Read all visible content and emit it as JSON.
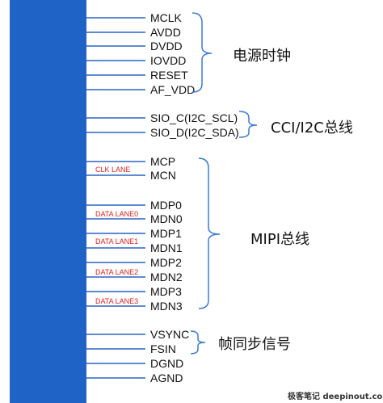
{
  "pins": [
    {
      "id": "mclk",
      "label": "MCLK"
    },
    {
      "id": "avdd",
      "label": "AVDD"
    },
    {
      "id": "dvdd",
      "label": "DVDD"
    },
    {
      "id": "iovdd",
      "label": "IOVDD"
    },
    {
      "id": "reset",
      "label": "RESET"
    },
    {
      "id": "af-vdd",
      "label": "AF_VDD"
    },
    {
      "id": "sio-c",
      "label": "SIO_C(I2C_SCL)"
    },
    {
      "id": "sio-d",
      "label": "SIO_D(I2C_SDA)"
    },
    {
      "id": "mcp",
      "label": "MCP"
    },
    {
      "id": "mcn",
      "label": "MCN"
    },
    {
      "id": "mdp0",
      "label": "MDP0"
    },
    {
      "id": "mdn0",
      "label": "MDN0"
    },
    {
      "id": "mdp1",
      "label": "MDP1"
    },
    {
      "id": "mdn1",
      "label": "MDN1"
    },
    {
      "id": "mdp2",
      "label": "MDP2"
    },
    {
      "id": "mdn2",
      "label": "MDN2"
    },
    {
      "id": "mdp3",
      "label": "MDP3"
    },
    {
      "id": "mdn3",
      "label": "MDN3"
    },
    {
      "id": "vsync",
      "label": "VSYNC"
    },
    {
      "id": "fsin",
      "label": "FSIN"
    },
    {
      "id": "dgnd",
      "label": "DGND"
    },
    {
      "id": "agnd",
      "label": "AGND"
    }
  ],
  "lanes": [
    {
      "id": "clk-lane",
      "label": "CLK LANE"
    },
    {
      "id": "data-lane0",
      "label": "DATA LANE0"
    },
    {
      "id": "data-lane1",
      "label": "DATA LANE1"
    },
    {
      "id": "data-lane2",
      "label": "DATA LANE2"
    },
    {
      "id": "data-lane3",
      "label": "DATA LANE3"
    }
  ],
  "groups": [
    {
      "id": "power-clock",
      "label": "电源时钟"
    },
    {
      "id": "cci-i2c-bus",
      "label": "CCI/I2C总线"
    },
    {
      "id": "mipi-bus",
      "label": "MIPI总线"
    },
    {
      "id": "frame-sync",
      "label": "帧同步信号"
    }
  ],
  "watermark": "极客笔记 deepinout.com",
  "colors": {
    "chip": "#1f63c6",
    "wire": "#2a63c4",
    "bracket": "#3b7ad6",
    "lane_text": "#e02020"
  }
}
